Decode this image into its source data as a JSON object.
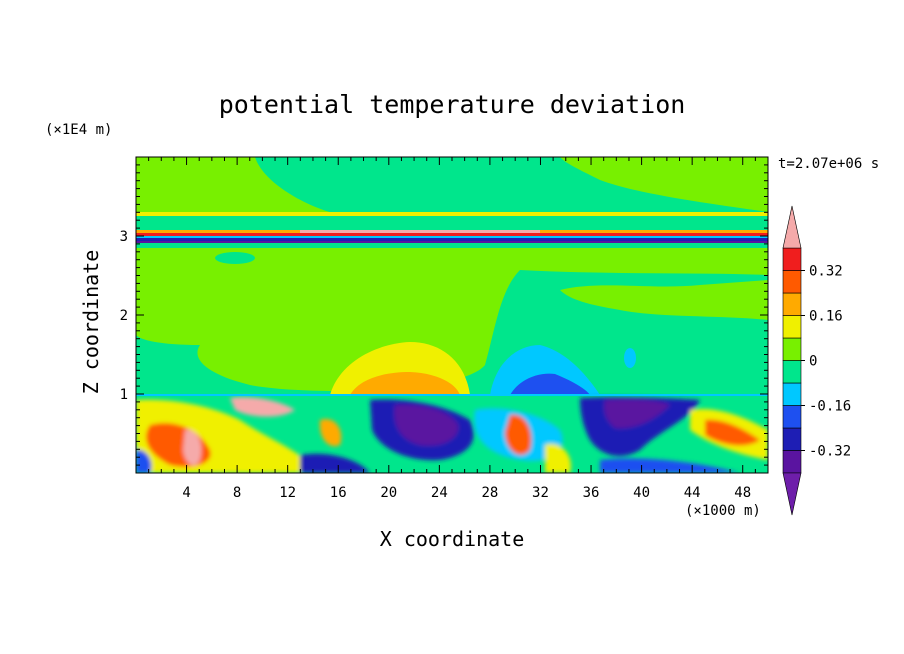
{
  "chart_data": {
    "type": "heatmap",
    "title": "potential temperature deviation",
    "xlabel": "X coordinate",
    "ylabel": "Z coordinate",
    "x_unit": "(×1000 m)",
    "y_unit": "(×1E4 m)",
    "time_label": "t=2.07e+06 s",
    "xlim": [
      0,
      50
    ],
    "ylim": [
      0,
      4
    ],
    "x_ticks": [
      "4",
      "8",
      "12",
      "16",
      "20",
      "24",
      "28",
      "32",
      "36",
      "40",
      "44",
      "48"
    ],
    "y_ticks": [
      "1",
      "2",
      "3"
    ],
    "colorbar": {
      "levels": [
        -0.4,
        -0.32,
        -0.24,
        -0.16,
        -0.08,
        0,
        0.08,
        0.16,
        0.24,
        0.32,
        0.4
      ],
      "colors": [
        "#5a14a0",
        "#1e1eb4",
        "#1e50f0",
        "#00c8ff",
        "#00e68c",
        "#78f000",
        "#f0f000",
        "#ffaa00",
        "#ff5a00",
        "#f01e1e"
      ],
      "under_color": "#6e1eaa",
      "over_color": "#f5aaaa",
      "tick_labels": [
        "-0.32",
        "-0.16",
        "0",
        "0.16",
        "0.32"
      ]
    }
  }
}
